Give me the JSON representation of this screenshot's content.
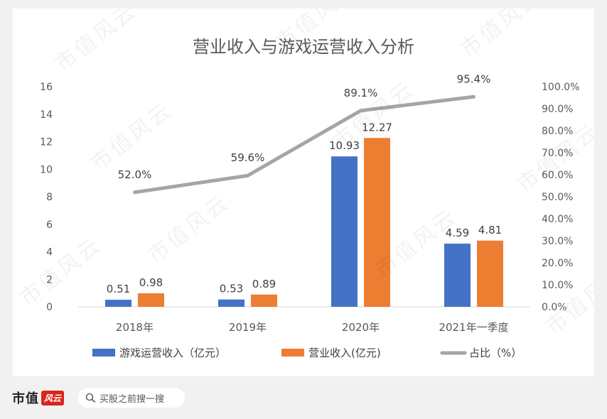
{
  "watermark_text": "市值风云",
  "footer": {
    "brand": "市值",
    "brand_logo_text": "风云",
    "search_placeholder": "买股之前搜一搜",
    "search_icon": "search-icon"
  },
  "chart_data": {
    "type": "bar",
    "title": "营业收入与游戏运营收入分析",
    "categories": [
      "2018年",
      "2019年",
      "2020年",
      "2021年一季度"
    ],
    "series": [
      {
        "name": "游戏运营收入（亿元）",
        "kind": "bar",
        "axis": "left",
        "color": "#4472c4",
        "values": [
          0.51,
          0.53,
          10.93,
          4.59
        ],
        "labels": [
          "0.51",
          "0.53",
          "10.93",
          "4.59"
        ]
      },
      {
        "name": "营业收入(亿元)",
        "kind": "bar",
        "axis": "left",
        "color": "#ed7d31",
        "values": [
          0.98,
          0.89,
          12.27,
          4.81
        ],
        "labels": [
          "0.98",
          "0.89",
          "12.27",
          "4.81"
        ]
      },
      {
        "name": "占比（%）",
        "kind": "line",
        "axis": "right",
        "color": "#a5a5a5",
        "values": [
          52.0,
          59.6,
          89.1,
          95.4
        ],
        "labels": [
          "52.0%",
          "59.6%",
          "89.1%",
          "95.4%"
        ]
      }
    ],
    "y_left": {
      "min": 0,
      "max": 16,
      "ticks": [
        "0",
        "2",
        "4",
        "6",
        "8",
        "10",
        "12",
        "14",
        "16"
      ]
    },
    "y_right": {
      "min": 0,
      "max": 100,
      "ticks": [
        "0.0%",
        "10.0%",
        "20.0%",
        "30.0%",
        "40.0%",
        "50.0%",
        "60.0%",
        "70.0%",
        "80.0%",
        "90.0%",
        "100.0%"
      ]
    },
    "grid": false,
    "legend_position": "bottom"
  }
}
